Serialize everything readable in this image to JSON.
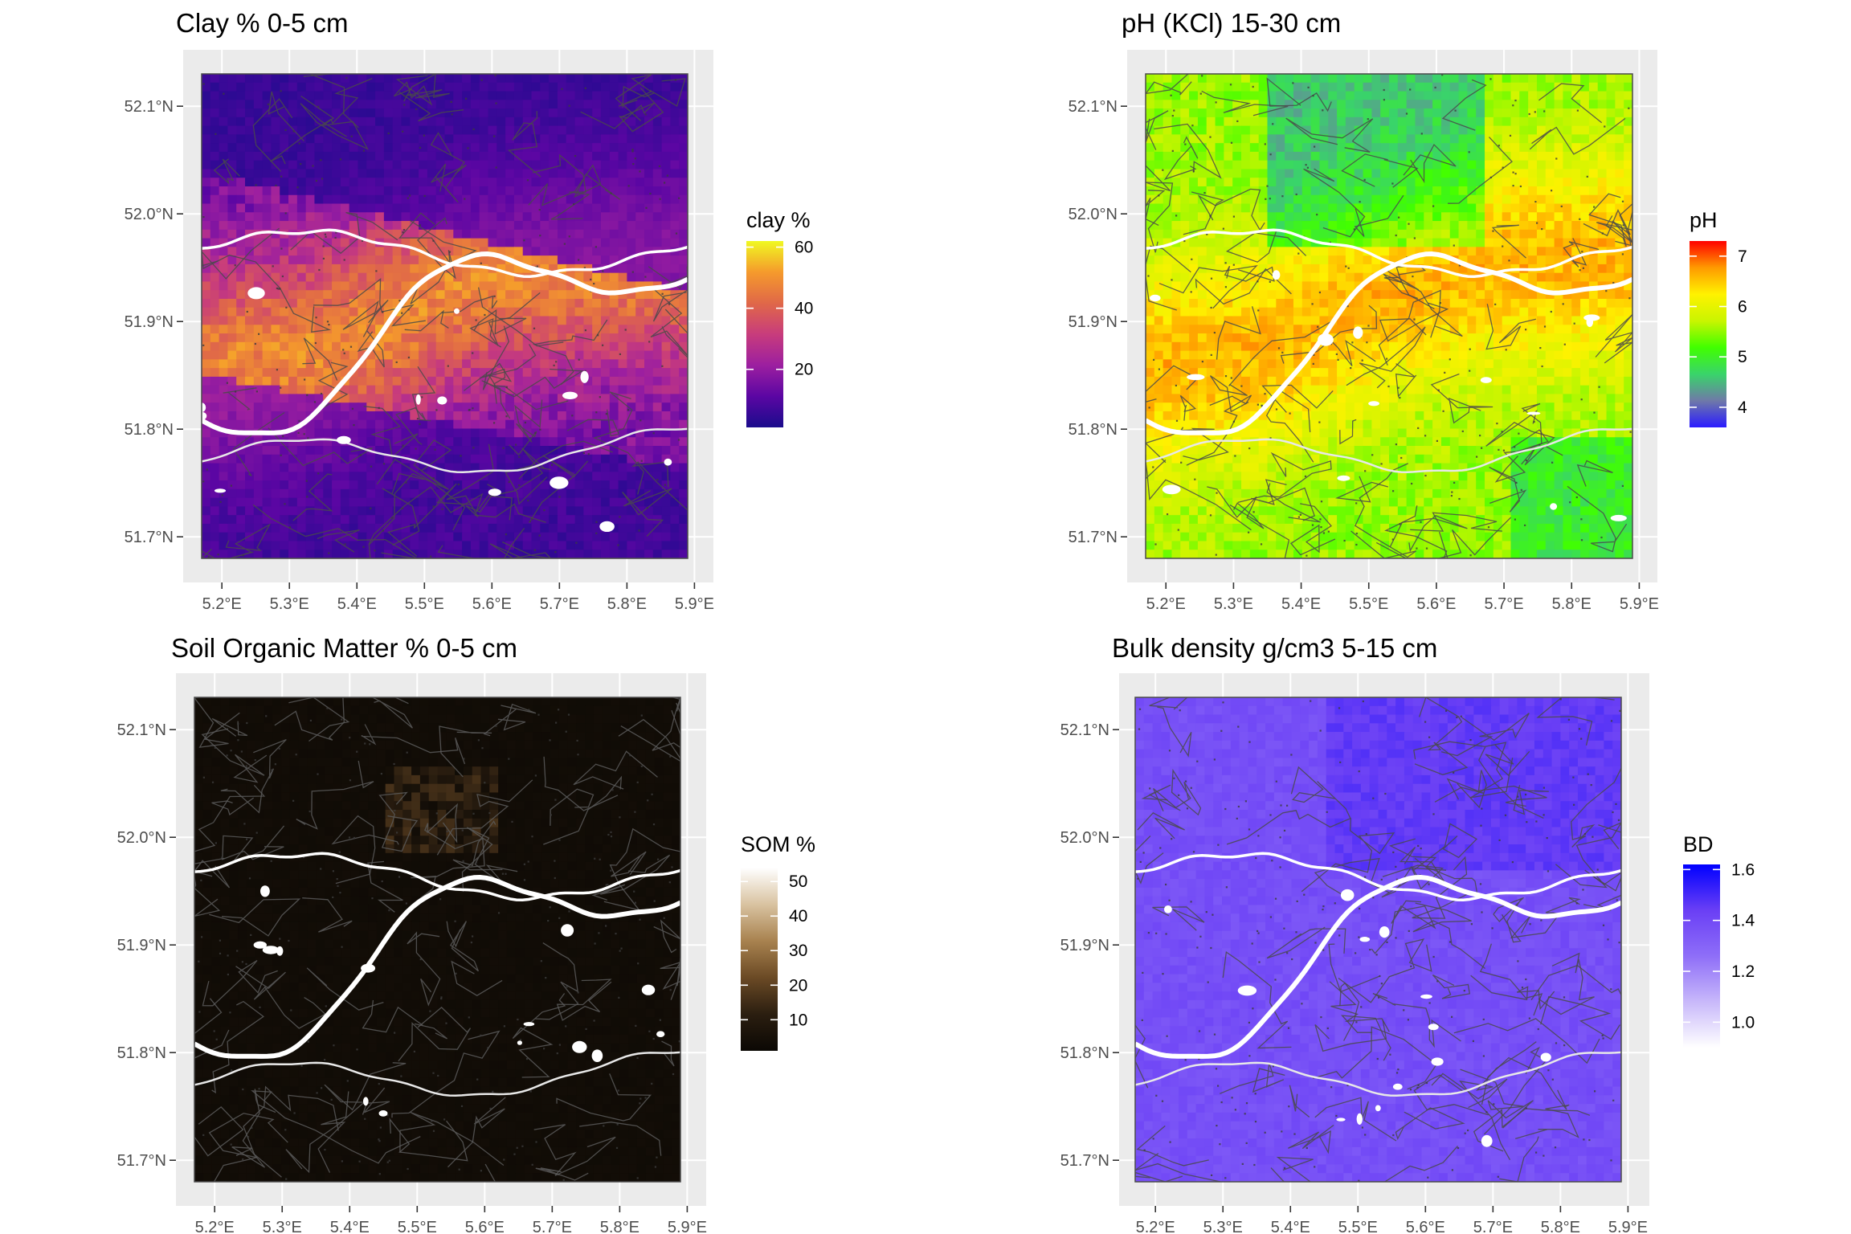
{
  "panels": [
    {
      "title": "Clay % 0-5 cm",
      "palette": "plasma",
      "colors": [
        "#1a0b8c",
        "#5b06a3",
        "#9c1fa0",
        "#c83c7c",
        "#e06848",
        "#f59a2c",
        "#f0f921"
      ],
      "legend": {
        "title": "clay %",
        "breaks": [
          "60",
          "40",
          "20"
        ],
        "break_values": [
          60,
          40,
          20
        ],
        "min": 1,
        "max": 62
      }
    },
    {
      "title": "pH (KCl) 15-30 cm",
      "palette": "rainbow",
      "colors": [
        "#2a1bff",
        "#6f79a8",
        "#39d46a",
        "#41ff00",
        "#c9f500",
        "#fff200",
        "#ff9a00",
        "#ff0000"
      ],
      "legend": {
        "title": "pH",
        "breaks": [
          "7",
          "6",
          "5",
          "4"
        ],
        "break_values": [
          7,
          6,
          5,
          4
        ],
        "min": 3.6,
        "max": 7.3
      }
    },
    {
      "title": "Soil Organic Matter % 0-5 cm",
      "palette": "brown",
      "colors": [
        "#0b0804",
        "#2b1e10",
        "#6b4a25",
        "#a8824f",
        "#d9c3a1",
        "#ffffff"
      ],
      "legend": {
        "title": "SOM %",
        "breaks": [
          "50",
          "40",
          "30",
          "20",
          "10"
        ],
        "break_values": [
          50,
          40,
          30,
          20,
          10
        ],
        "min": 1,
        "max": 54
      }
    },
    {
      "title": "Bulk density g/cm3 5-15 cm",
      "palette": "purple",
      "colors": [
        "#ffffff",
        "#c8b8fa",
        "#8e6ef8",
        "#6a3ff5",
        "#0000ff"
      ],
      "legend": {
        "title": "BD",
        "breaks": [
          "1.6",
          "1.4",
          "1.2",
          "1.0"
        ],
        "break_values": [
          1.6,
          1.4,
          1.2,
          1.0
        ],
        "min": 0.9,
        "max": 1.62
      }
    }
  ],
  "axes": {
    "x_ticks": [
      "5.2°E",
      "5.3°E",
      "5.4°E",
      "5.5°E",
      "5.6°E",
      "5.7°E",
      "5.8°E",
      "5.9°E"
    ],
    "y_ticks": [
      "52.1°N",
      "52.0°N",
      "51.9°N",
      "51.8°N",
      "51.7°N"
    ],
    "x_values": [
      5.2,
      5.3,
      5.4,
      5.5,
      5.6,
      5.7,
      5.8,
      5.9
    ],
    "y_values": [
      52.1,
      52.0,
      51.9,
      51.8,
      51.7
    ],
    "lon_range": [
      5.17,
      5.89
    ],
    "lat_range": [
      51.68,
      52.13
    ],
    "background_range_lon": [
      5.15,
      5.92
    ],
    "background_range_lat": [
      51.66,
      52.15
    ]
  }
}
